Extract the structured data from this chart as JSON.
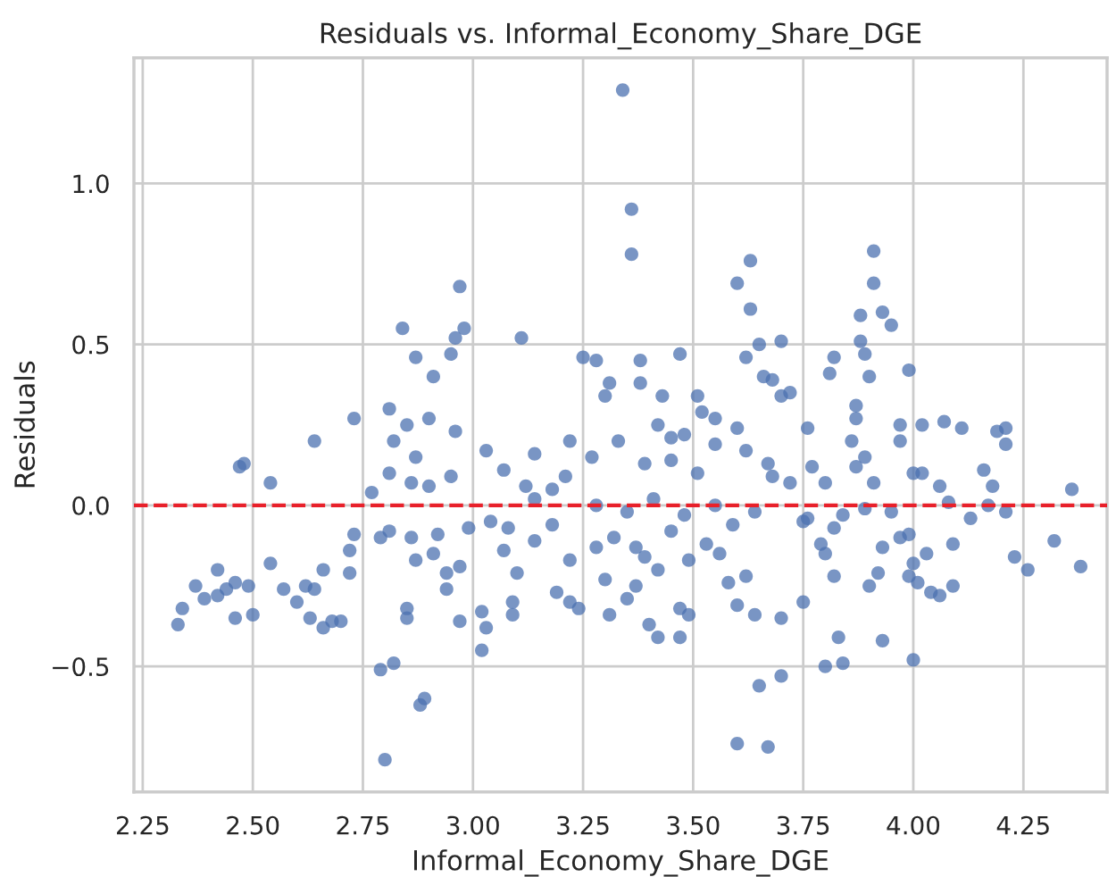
{
  "chart_data": {
    "type": "scatter",
    "title": "Residuals vs. Informal_Economy_Share_DGE",
    "xlabel": "Informal_Economy_Share_DGE",
    "ylabel": "Residuals",
    "x": [
      2.97,
      2.84,
      2.98,
      2.96,
      2.95,
      2.87,
      2.91,
      2.81,
      2.73,
      2.85,
      2.9,
      2.96,
      2.64,
      2.82,
      3.34,
      3.36,
      3.36,
      3.63,
      3.6,
      3.63,
      3.65,
      3.62,
      3.11,
      3.25,
      3.28,
      3.38,
      3.47,
      3.31,
      3.38,
      3.3,
      3.43,
      3.51,
      3.7,
      3.66,
      3.7,
      3.42,
      3.48,
      3.55,
      3.6,
      3.52,
      3.91,
      3.91,
      3.88,
      3.93,
      3.95,
      3.88,
      3.89,
      3.82,
      3.81,
      3.99,
      3.9,
      3.87,
      3.87,
      3.76,
      3.97,
      4.02,
      4.07,
      4.11,
      4.21,
      4.19,
      3.68,
      3.72,
      2.47,
      2.48,
      2.54,
      2.77,
      2.73,
      2.72,
      2.72,
      2.79,
      2.81,
      2.86,
      2.87,
      2.91,
      2.92,
      2.94,
      2.94,
      2.97,
      2.97,
      2.85,
      2.85,
      2.79,
      2.82,
      2.89,
      2.88,
      2.8,
      2.33,
      2.34,
      2.37,
      2.39,
      2.42,
      2.42,
      2.44,
      2.46,
      2.46,
      2.49,
      2.5,
      2.54,
      2.57,
      2.6,
      2.62,
      2.64,
      2.66,
      2.63,
      2.66,
      2.7,
      2.68,
      2.81,
      2.86,
      2.87,
      2.9,
      2.95,
      3.02,
      3.02,
      3.03,
      3.09,
      3.09,
      3.19,
      3.22,
      3.24,
      3.31,
      3.4,
      3.42,
      3.47,
      3.47,
      3.49,
      3.35,
      3.22,
      3.3,
      3.37,
      3.42,
      3.39,
      3.1,
      3.07,
      3.14,
      3.04,
      2.99,
      3.08,
      3.18,
      3.28,
      3.32,
      3.37,
      3.45,
      3.49,
      3.53,
      3.56,
      3.6,
      3.64,
      3.7,
      3.7,
      3.65,
      3.6,
      3.67,
      3.62,
      3.58,
      3.22,
      3.27,
      3.14,
      3.07,
      3.03,
      3.21,
      3.33,
      3.39,
      3.45,
      3.51,
      3.55,
      3.62,
      3.67,
      3.45,
      3.12,
      3.18,
      3.14,
      3.28,
      3.35,
      3.41,
      3.48,
      3.55,
      3.64,
      3.59,
      4.36,
      4.32,
      4.38,
      4.23,
      4.26,
      4.21,
      4.17,
      4.13,
      4.09,
      4.09,
      4.06,
      4.04,
      4.01,
      3.99,
      4.03,
      4.0,
      4.0,
      3.93,
      3.83,
      3.84,
      3.8,
      3.75,
      3.9,
      3.92,
      3.93,
      3.97,
      3.99,
      3.82,
      3.8,
      3.79,
      3.75,
      3.82,
      3.86,
      3.89,
      3.87,
      3.77,
      3.8,
      3.91,
      4.0,
      4.02,
      4.06,
      4.16,
      4.18,
      4.21,
      3.97,
      3.72,
      3.68,
      3.95,
      3.89,
      3.84,
      3.76,
      4.08
    ],
    "values": [
      0.68,
      0.55,
      0.55,
      0.52,
      0.47,
      0.46,
      0.4,
      0.3,
      0.27,
      0.25,
      0.27,
      0.23,
      0.2,
      0.2,
      1.29,
      0.92,
      0.78,
      0.76,
      0.69,
      0.61,
      0.5,
      0.46,
      0.52,
      0.46,
      0.45,
      0.45,
      0.47,
      0.38,
      0.38,
      0.34,
      0.34,
      0.34,
      0.34,
      0.4,
      0.51,
      0.25,
      0.22,
      0.27,
      0.24,
      0.29,
      0.79,
      0.69,
      0.59,
      0.6,
      0.56,
      0.51,
      0.47,
      0.46,
      0.41,
      0.42,
      0.4,
      0.31,
      0.27,
      0.24,
      0.25,
      0.25,
      0.26,
      0.24,
      0.24,
      0.23,
      0.39,
      0.35,
      0.12,
      0.13,
      0.07,
      0.04,
      -0.09,
      -0.14,
      -0.21,
      -0.1,
      -0.08,
      -0.1,
      -0.17,
      -0.15,
      -0.09,
      -0.21,
      -0.26,
      -0.19,
      -0.36,
      -0.32,
      -0.35,
      -0.51,
      -0.49,
      -0.6,
      -0.62,
      -0.79,
      -0.37,
      -0.32,
      -0.25,
      -0.29,
      -0.28,
      -0.2,
      -0.26,
      -0.24,
      -0.35,
      -0.25,
      -0.34,
      -0.18,
      -0.26,
      -0.3,
      -0.25,
      -0.26,
      -0.2,
      -0.35,
      -0.38,
      -0.36,
      -0.36,
      0.1,
      0.07,
      0.15,
      0.06,
      0.09,
      -0.45,
      -0.33,
      -0.38,
      -0.3,
      -0.34,
      -0.27,
      -0.3,
      -0.32,
      -0.34,
      -0.37,
      -0.41,
      -0.41,
      -0.32,
      -0.34,
      -0.29,
      -0.17,
      -0.23,
      -0.25,
      -0.2,
      -0.16,
      -0.21,
      -0.14,
      -0.11,
      -0.05,
      -0.07,
      -0.07,
      -0.06,
      -0.13,
      -0.1,
      -0.13,
      -0.08,
      -0.17,
      -0.12,
      -0.15,
      -0.31,
      -0.34,
      -0.35,
      -0.53,
      -0.56,
      -0.74,
      -0.75,
      -0.22,
      -0.24,
      0.2,
      0.15,
      0.16,
      0.11,
      0.17,
      0.09,
      0.2,
      0.13,
      0.14,
      0.1,
      0.19,
      0.17,
      0.13,
      0.21,
      0.06,
      0.05,
      0.02,
      0.0,
      -0.02,
      0.02,
      -0.03,
      0.0,
      -0.02,
      -0.06,
      0.05,
      -0.11,
      -0.19,
      -0.16,
      -0.2,
      -0.02,
      0.0,
      -0.04,
      -0.12,
      -0.25,
      -0.28,
      -0.27,
      -0.24,
      -0.22,
      -0.15,
      -0.18,
      -0.48,
      -0.42,
      -0.41,
      -0.49,
      -0.5,
      -0.3,
      -0.25,
      -0.21,
      -0.13,
      -0.1,
      -0.09,
      -0.22,
      -0.15,
      -0.12,
      -0.05,
      -0.07,
      0.2,
      0.15,
      0.12,
      0.12,
      0.07,
      0.07,
      0.1,
      0.1,
      0.06,
      0.11,
      0.06,
      0.19,
      0.2,
      0.07,
      0.09,
      -0.02,
      -0.01,
      -0.03,
      -0.04,
      0.01
    ],
    "color": "#4c72b0",
    "marker": "circle",
    "xlim": [
      2.23,
      4.44
    ],
    "ylim": [
      -0.89,
      1.39
    ],
    "xticks": [
      2.25,
      {
        "value": 2.5,
        "label": "2.50"
      },
      2.75,
      {
        "value": 3,
        "label": "3.00"
      },
      3.25,
      {
        "value": 3.5,
        "label": "3.50"
      },
      3.75,
      {
        "value": 4,
        "label": "4.00"
      },
      4.25
    ],
    "yticks": [
      {
        "value": -0.5,
        "label": "−0.5"
      },
      {
        "value": 0,
        "label": "0.0"
      },
      0.5,
      {
        "value": 1,
        "label": "1.0"
      }
    ],
    "grid": true,
    "ref_lines": [
      {
        "axis": "y",
        "value": 0,
        "color": "#e8202a",
        "line_style": "dashed"
      }
    ]
  }
}
